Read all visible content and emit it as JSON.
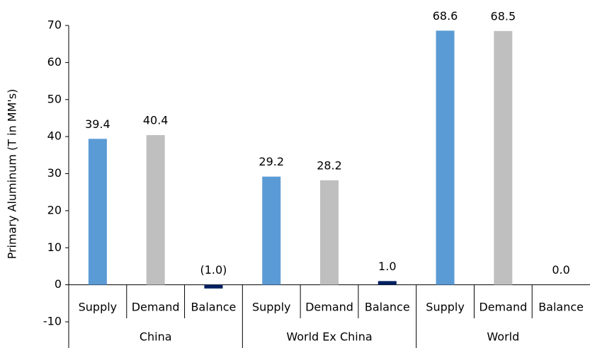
{
  "chart_data": {
    "type": "bar",
    "y_label": "Primary Aluminum (T in MM's)",
    "categories": [
      "Supply",
      "Demand",
      "Balance",
      "Supply",
      "Demand",
      "Balance",
      "Supply",
      "Demand",
      "Balance"
    ],
    "groups": [
      "China",
      "World Ex China",
      "World"
    ],
    "values": [
      39.4,
      40.4,
      -1.0,
      29.2,
      28.2,
      1.0,
      68.6,
      68.5,
      0.0
    ],
    "value_labels": [
      "39.4",
      "40.4",
      "(1.0)",
      "29.2",
      "28.2",
      "1.0",
      "68.6",
      "68.5",
      "0.0"
    ],
    "colors": [
      "#5b9bd5",
      "#bfbfbf",
      "#002060",
      "#5b9bd5",
      "#bfbfbf",
      "#002060",
      "#5b9bd5",
      "#bfbfbf",
      "#002060"
    ],
    "ylim": [
      -10,
      70
    ],
    "yticks": [
      -10,
      0,
      10,
      20,
      30,
      40,
      50,
      60,
      70
    ]
  }
}
